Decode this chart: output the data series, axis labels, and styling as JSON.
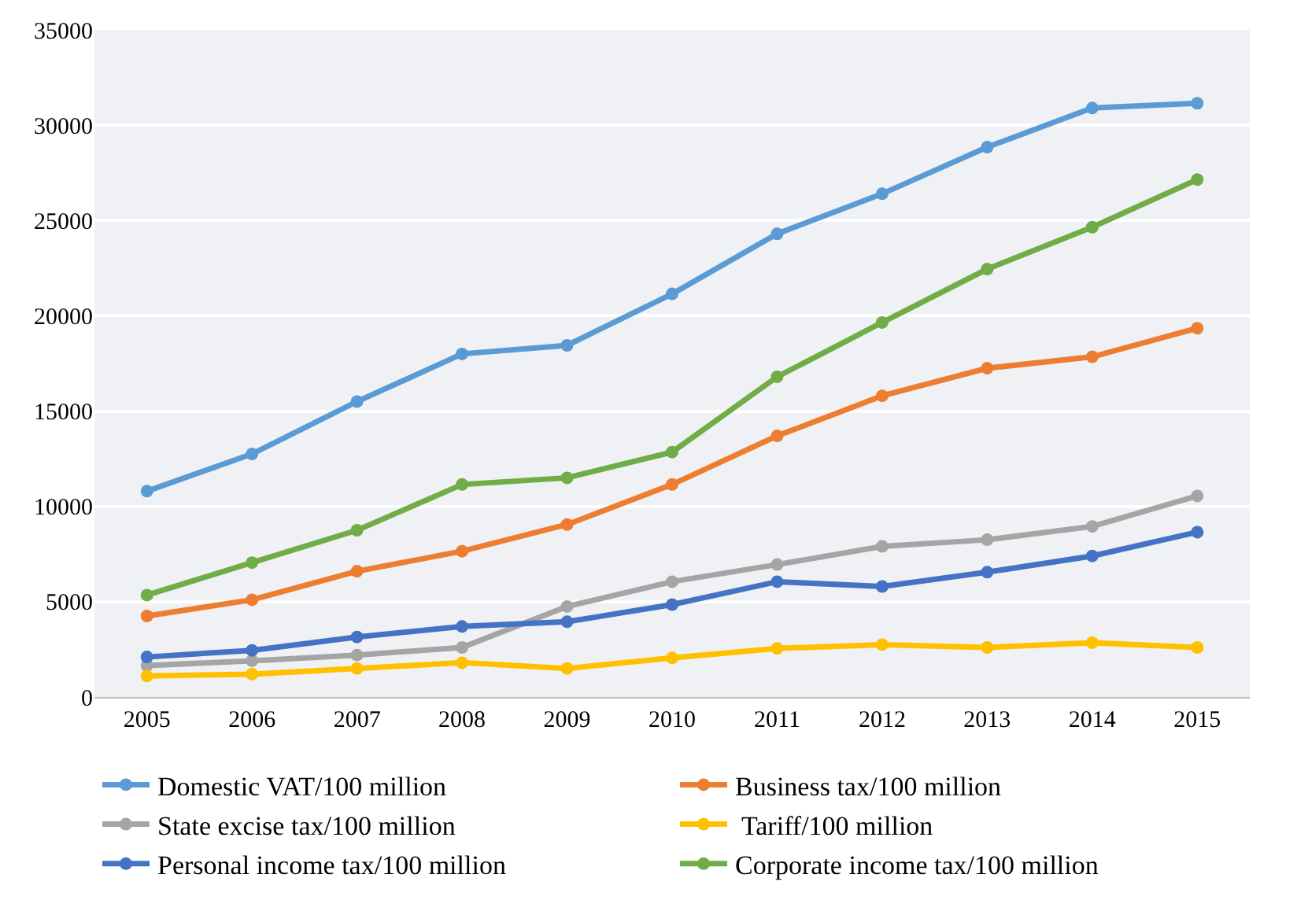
{
  "chart_data": {
    "type": "line",
    "categories": [
      "2005",
      "2006",
      "2007",
      "2008",
      "2009",
      "2010",
      "2011",
      "2012",
      "2013",
      "2014",
      "2015"
    ],
    "ylim": [
      0,
      35000
    ],
    "yticks": [
      0,
      5000,
      10000,
      15000,
      20000,
      25000,
      30000,
      35000
    ],
    "grid": "y",
    "legend": "bottom",
    "marker": "circle",
    "line_style": "solid",
    "series": [
      {
        "name": "Domestic VAT/100 million",
        "color": "#5b9bd5",
        "values": [
          10800,
          12750,
          15500,
          18000,
          18450,
          21150,
          24300,
          26400,
          28850,
          30900,
          31150
        ]
      },
      {
        "name": "Business tax/100 million",
        "color": "#ed7d31",
        "values": [
          4250,
          5100,
          6600,
          7650,
          9050,
          11150,
          13700,
          15800,
          17250,
          17850,
          19350
        ]
      },
      {
        "name": "State excise tax/100 million",
        "color": "#a5a5a5",
        "values": [
          1650,
          1900,
          2200,
          2600,
          4750,
          6050,
          6950,
          7900,
          8250,
          8950,
          10550
        ]
      },
      {
        "name": " Tariff/100 million",
        "color": "#ffc000",
        "values": [
          1100,
          1200,
          1500,
          1800,
          1500,
          2050,
          2550,
          2750,
          2600,
          2850,
          2600
        ]
      },
      {
        "name": "Personal income tax/100 million",
        "color": "#4472c4",
        "values": [
          2100,
          2450,
          3150,
          3700,
          3950,
          4850,
          6050,
          5800,
          6550,
          7400,
          8650
        ]
      },
      {
        "name": "Corporate income tax/100 million",
        "color": "#70ad47",
        "values": [
          5350,
          7050,
          8750,
          11150,
          11500,
          12850,
          16800,
          19650,
          22450,
          24650,
          27150
        ]
      }
    ]
  }
}
